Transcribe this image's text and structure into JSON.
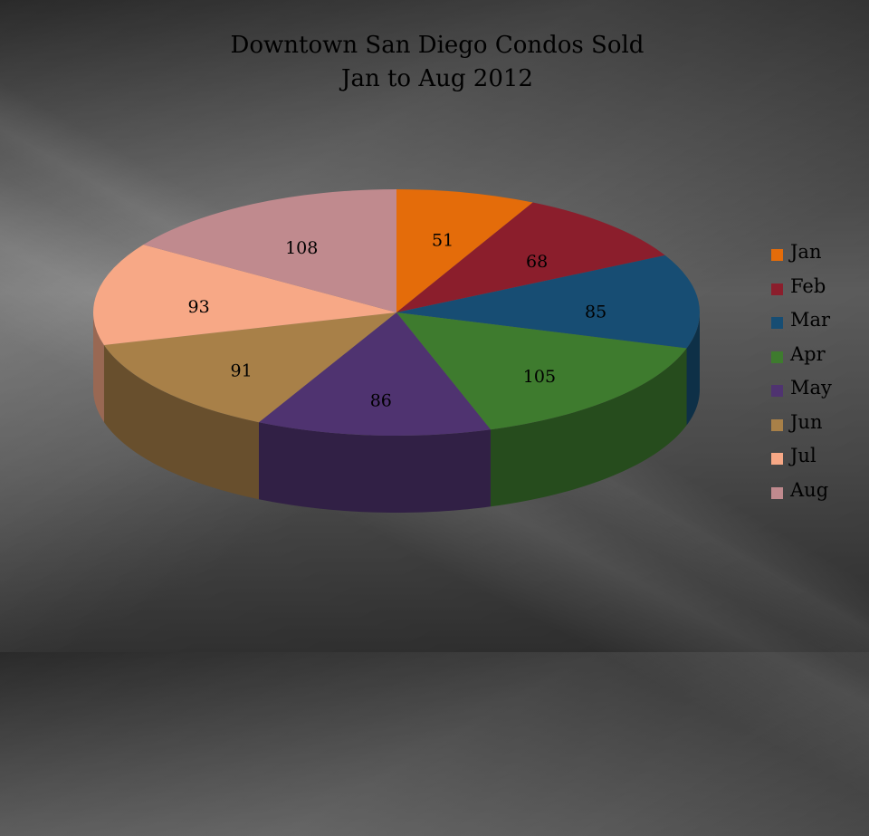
{
  "chart_data": {
    "type": "pie",
    "title": "Downtown San Diego Condos Sold",
    "subtitle": "Jan to Aug 2012",
    "categories": [
      "Jan",
      "Feb",
      "Mar",
      "Apr",
      "May",
      "Jun",
      "Jul",
      "Aug"
    ],
    "values": [
      51,
      68,
      85,
      105,
      86,
      91,
      93,
      108
    ],
    "data_labels": [
      "51",
      "68",
      "85",
      "105",
      "86",
      "91",
      "93",
      "108"
    ],
    "colors": [
      "#E46C0A",
      "#8B1E2C",
      "#174D73",
      "#3E7B2E",
      "#4F3370",
      "#A88048",
      "#F7A886",
      "#C08A8E"
    ],
    "legend_position": "right",
    "style": "3d-pie"
  }
}
